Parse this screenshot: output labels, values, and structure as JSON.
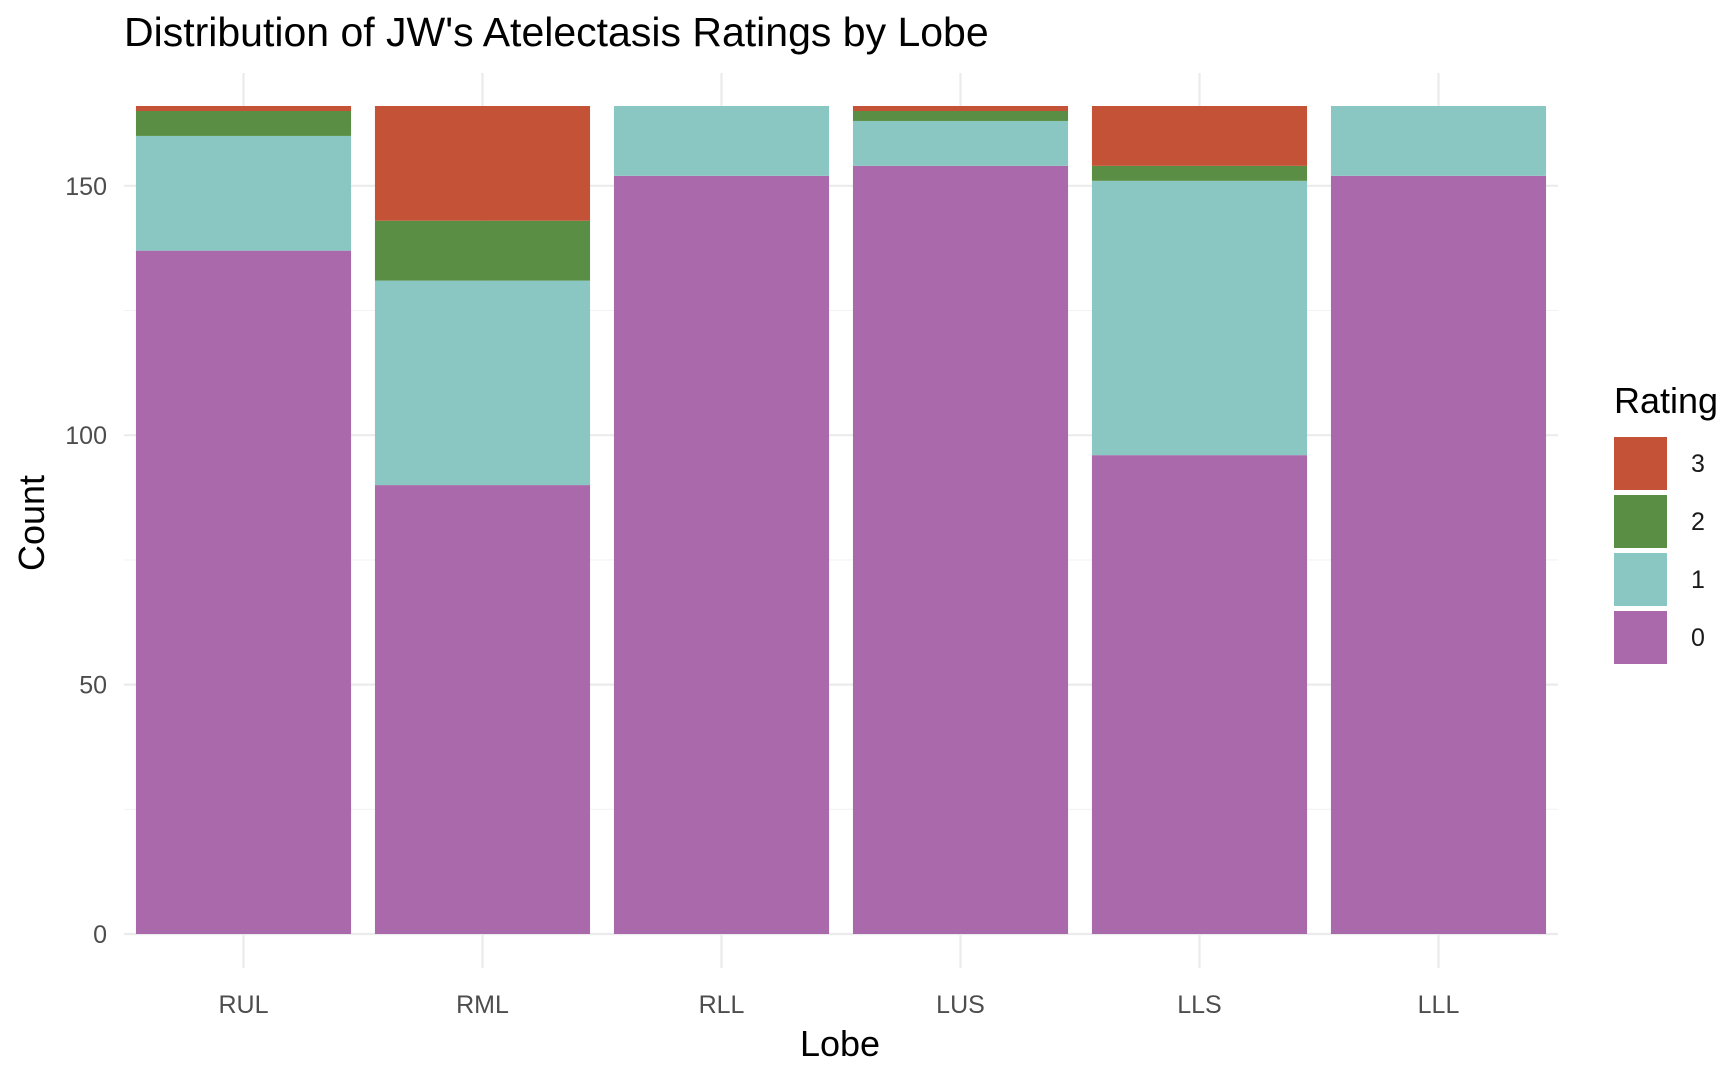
{
  "chart_data": {
    "type": "bar",
    "stacked": true,
    "title": "Distribution of JW's Atelectasis Ratings by Lobe",
    "xlabel": "Lobe",
    "ylabel": "Count",
    "categories": [
      "RUL",
      "RML",
      "RLL",
      "LUS",
      "LLS",
      "LLL"
    ],
    "ylim": [
      0,
      166
    ],
    "yticks": [
      "0",
      "50",
      "100",
      "150"
    ],
    "ytick_values": [
      0,
      50,
      100,
      150
    ],
    "legend_title": "Rating",
    "legend_position": "right",
    "grid": true,
    "series": [
      {
        "name": "0",
        "color": "#a969ab",
        "values": [
          137,
          90,
          152,
          154,
          96,
          152
        ]
      },
      {
        "name": "1",
        "color": "#8bc7c2",
        "values": [
          23,
          41,
          14,
          9,
          55,
          14
        ]
      },
      {
        "name": "2",
        "color": "#5a8e44",
        "values": [
          5,
          12,
          0,
          2,
          3,
          0
        ]
      },
      {
        "name": "3",
        "color": "#c45237",
        "values": [
          1,
          23,
          0,
          1,
          12,
          0
        ]
      }
    ],
    "legend_order": [
      "3",
      "2",
      "1",
      "0"
    ]
  }
}
